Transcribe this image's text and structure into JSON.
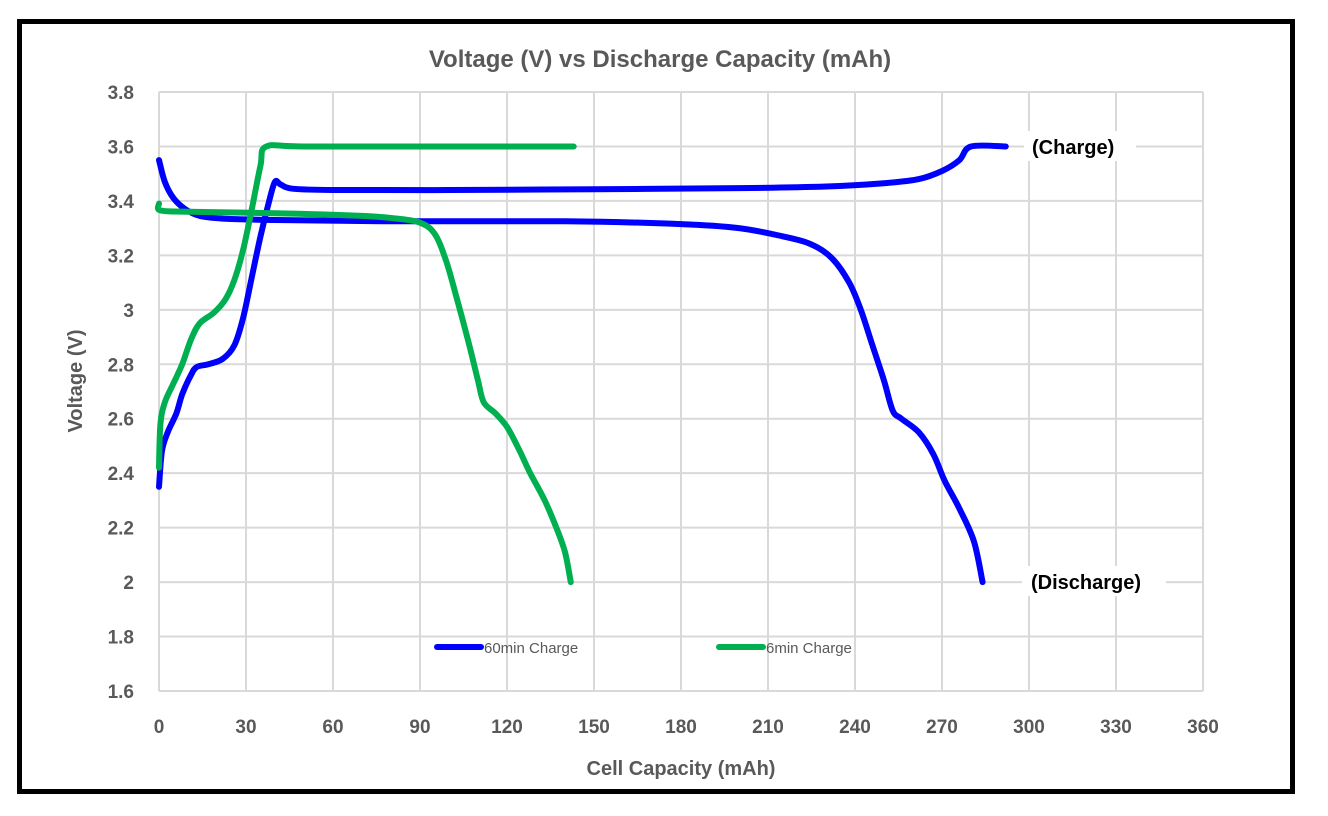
{
  "chart_data": {
    "type": "line",
    "title": "Voltage (V) vs Discharge Capacity (mAh)",
    "xlabel": "Cell Capacity (mAh)",
    "ylabel": "Voltage (V)",
    "xlim": [
      0,
      360
    ],
    "ylim": [
      1.6,
      3.8
    ],
    "xticks": [
      "0",
      "30",
      "60",
      "90",
      "120",
      "150",
      "180",
      "210",
      "240",
      "270",
      "300",
      "330",
      "360"
    ],
    "yticks": [
      "3.8",
      "3.6",
      "3.4",
      "3.2",
      "3",
      "2.8",
      "2.6",
      "2.4",
      "2.2",
      "2",
      "1.8",
      "1.6"
    ],
    "grid": true,
    "legend_position": "bottom-inside",
    "series": [
      {
        "name": "60min Charge",
        "color": "#0000ff",
        "segments": [
          {
            "label": "charge",
            "points": [
              [
                0,
                2.35
              ],
              [
                1,
                2.48
              ],
              [
                3,
                2.55
              ],
              [
                6,
                2.62
              ],
              [
                8,
                2.69
              ],
              [
                11,
                2.76
              ],
              [
                13,
                2.79
              ],
              [
                17,
                2.8
              ],
              [
                22,
                2.82
              ],
              [
                26,
                2.87
              ],
              [
                29,
                2.97
              ],
              [
                32,
                3.12
              ],
              [
                35,
                3.27
              ],
              [
                38,
                3.4
              ],
              [
                40,
                3.47
              ],
              [
                42,
                3.46
              ],
              [
                46,
                3.445
              ],
              [
                60,
                3.44
              ],
              [
                100,
                3.44
              ],
              [
                150,
                3.443
              ],
              [
                200,
                3.447
              ],
              [
                230,
                3.453
              ],
              [
                250,
                3.465
              ],
              [
                262,
                3.48
              ],
              [
                270,
                3.51
              ],
              [
                276,
                3.55
              ],
              [
                280,
                3.6
              ],
              [
                292,
                3.6
              ]
            ]
          },
          {
            "label": "discharge",
            "points": [
              [
                0,
                3.55
              ],
              [
                2,
                3.47
              ],
              [
                5,
                3.41
              ],
              [
                9,
                3.37
              ],
              [
                14,
                3.345
              ],
              [
                22,
                3.335
              ],
              [
                40,
                3.33
              ],
              [
                80,
                3.325
              ],
              [
                140,
                3.325
              ],
              [
                180,
                3.315
              ],
              [
                200,
                3.3
              ],
              [
                215,
                3.27
              ],
              [
                225,
                3.24
              ],
              [
                232,
                3.19
              ],
              [
                238,
                3.1
              ],
              [
                242,
                3.0
              ],
              [
                246,
                2.87
              ],
              [
                250,
                2.74
              ],
              [
                253,
                2.63
              ],
              [
                256,
                2.6
              ],
              [
                262,
                2.55
              ],
              [
                267,
                2.47
              ],
              [
                271,
                2.37
              ],
              [
                276,
                2.27
              ],
              [
                281,
                2.15
              ],
              [
                284,
                2.0
              ]
            ]
          }
        ]
      },
      {
        "name": "6min Charge",
        "color": "#00b050",
        "segments": [
          {
            "label": "charge",
            "points": [
              [
                0,
                2.42
              ],
              [
                0.5,
                2.58
              ],
              [
                2,
                2.66
              ],
              [
                5,
                2.73
              ],
              [
                8,
                2.8
              ],
              [
                11,
                2.89
              ],
              [
                14,
                2.95
              ],
              [
                19,
                2.99
              ],
              [
                23,
                3.04
              ],
              [
                26,
                3.11
              ],
              [
                29,
                3.22
              ],
              [
                32,
                3.37
              ],
              [
                35,
                3.53
              ],
              [
                37,
                3.6
              ],
              [
                50,
                3.6
              ],
              [
                100,
                3.6
              ],
              [
                143,
                3.6
              ]
            ]
          },
          {
            "label": "discharge",
            "points": [
              [
                0,
                3.39
              ],
              [
                0.5,
                3.365
              ],
              [
                10,
                3.36
              ],
              [
                40,
                3.355
              ],
              [
                70,
                3.345
              ],
              [
                82,
                3.335
              ],
              [
                90,
                3.32
              ],
              [
                95,
                3.28
              ],
              [
                99,
                3.18
              ],
              [
                103,
                3.03
              ],
              [
                107,
                2.87
              ],
              [
                110,
                2.74
              ],
              [
                112,
                2.66
              ],
              [
                116,
                2.62
              ],
              [
                120,
                2.57
              ],
              [
                124,
                2.49
              ],
              [
                128,
                2.4
              ],
              [
                133,
                2.3
              ],
              [
                137,
                2.2
              ],
              [
                140,
                2.11
              ],
              [
                142,
                2.0
              ]
            ]
          }
        ]
      }
    ],
    "annotations": [
      {
        "text": "(Charge)",
        "x": 302,
        "y": 3.6
      },
      {
        "text": "(Discharge)",
        "x": 301,
        "y": 2.0
      }
    ]
  }
}
